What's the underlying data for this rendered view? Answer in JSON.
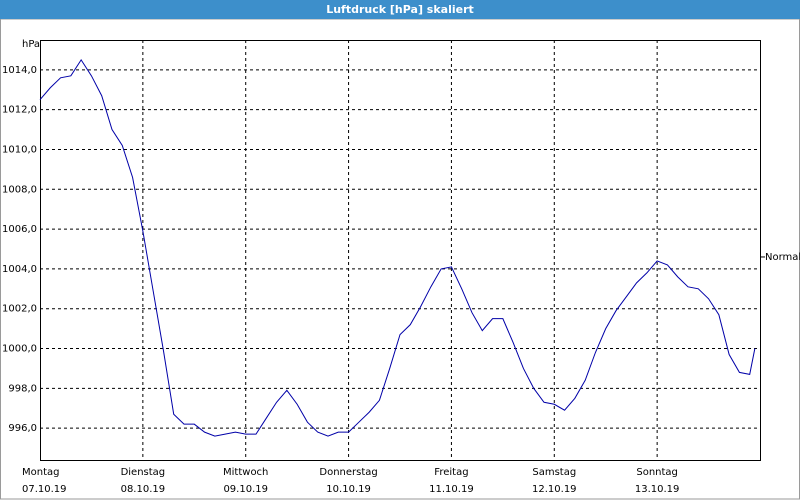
{
  "chart_data": {
    "type": "line",
    "title": "Luftdruck [hPa] skaliert",
    "y_unit": "hPa",
    "x": [
      0,
      0.1,
      0.2,
      0.3,
      0.4,
      0.5,
      0.6,
      0.7,
      0.8,
      0.9,
      1,
      1.1,
      1.2,
      1.3,
      1.4,
      1.5,
      1.6,
      1.7,
      1.8,
      1.9,
      2,
      2.1,
      2.2,
      2.3,
      2.4,
      2.5,
      2.6,
      2.7,
      2.8,
      2.9,
      3,
      3.1,
      3.2,
      3.3,
      3.4,
      3.5,
      3.6,
      3.7,
      3.8,
      3.9,
      4,
      4.1,
      4.2,
      4.3,
      4.4,
      4.5,
      4.6,
      4.7,
      4.8,
      4.9,
      5,
      5.1,
      5.2,
      5.3,
      5.4,
      5.5,
      5.6,
      5.7,
      5.8,
      5.9,
      6,
      6.1,
      6.2,
      6.3,
      6.4,
      6.5,
      6.6,
      6.7,
      6.8,
      6.9,
      6.95
    ],
    "series": [
      {
        "color": "#0000a8",
        "values": [
          1012.5,
          1013.1,
          1013.6,
          1013.7,
          1014.5,
          1013.7,
          1012.7,
          1011.0,
          1010.2,
          1008.6,
          1005.9,
          1002.9,
          999.9,
          996.7,
          996.2,
          996.2,
          995.8,
          995.6,
          995.7,
          995.8,
          995.7,
          995.7,
          996.5,
          997.3,
          997.9,
          997.2,
          996.3,
          995.8,
          995.6,
          995.8,
          995.8,
          996.3,
          996.8,
          997.4,
          999.0,
          1000.7,
          1001.2,
          1002.1,
          1003.1,
          1004.0,
          1004.1,
          1003.0,
          1001.8,
          1000.9,
          1001.5,
          1001.5,
          1000.3,
          999.0,
          998.0,
          997.3,
          997.2,
          996.9,
          997.5,
          998.4,
          999.8,
          1001.0,
          1001.9,
          1002.6,
          1003.3,
          1003.8,
          1004.4,
          1004.2,
          1003.6,
          1003.1,
          1003.0,
          1002.5,
          1001.7,
          999.7,
          998.8,
          998.7,
          1000.0
        ]
      }
    ],
    "xlim": [
      0,
      7
    ],
    "xticks": [
      {
        "value": 0,
        "label": "Montag"
      },
      {
        "value": 1,
        "label": "Dienstag"
      },
      {
        "value": 2,
        "label": "Mittwoch"
      },
      {
        "value": 3,
        "label": "Donnerstag"
      },
      {
        "value": 4,
        "label": "Freitag"
      },
      {
        "value": 5,
        "label": "Samstag"
      },
      {
        "value": 6,
        "label": "Sonntag"
      }
    ],
    "date_labels": [
      "07.10.19",
      "08.10.19",
      "09.10.19",
      "10.10.19",
      "11.10.19",
      "12.10.19",
      "13.10.19"
    ],
    "ylim": [
      994.4,
      1015.5
    ],
    "yticks": [
      {
        "value": 996,
        "label": "996,0"
      },
      {
        "value": 998,
        "label": "998,0"
      },
      {
        "value": 1000,
        "label": "1000,0"
      },
      {
        "value": 1002,
        "label": "1002,0"
      },
      {
        "value": 1004,
        "label": "1004,0"
      },
      {
        "value": 1006,
        "label": "1006,0"
      },
      {
        "value": 1008,
        "label": "1008,0"
      },
      {
        "value": 1010,
        "label": "1010,0"
      },
      {
        "value": 1012,
        "label": "1012,0"
      },
      {
        "value": 1014,
        "label": "1014,0"
      }
    ],
    "reference": {
      "label": "Normal",
      "value": 1004.6
    },
    "grid": true
  }
}
